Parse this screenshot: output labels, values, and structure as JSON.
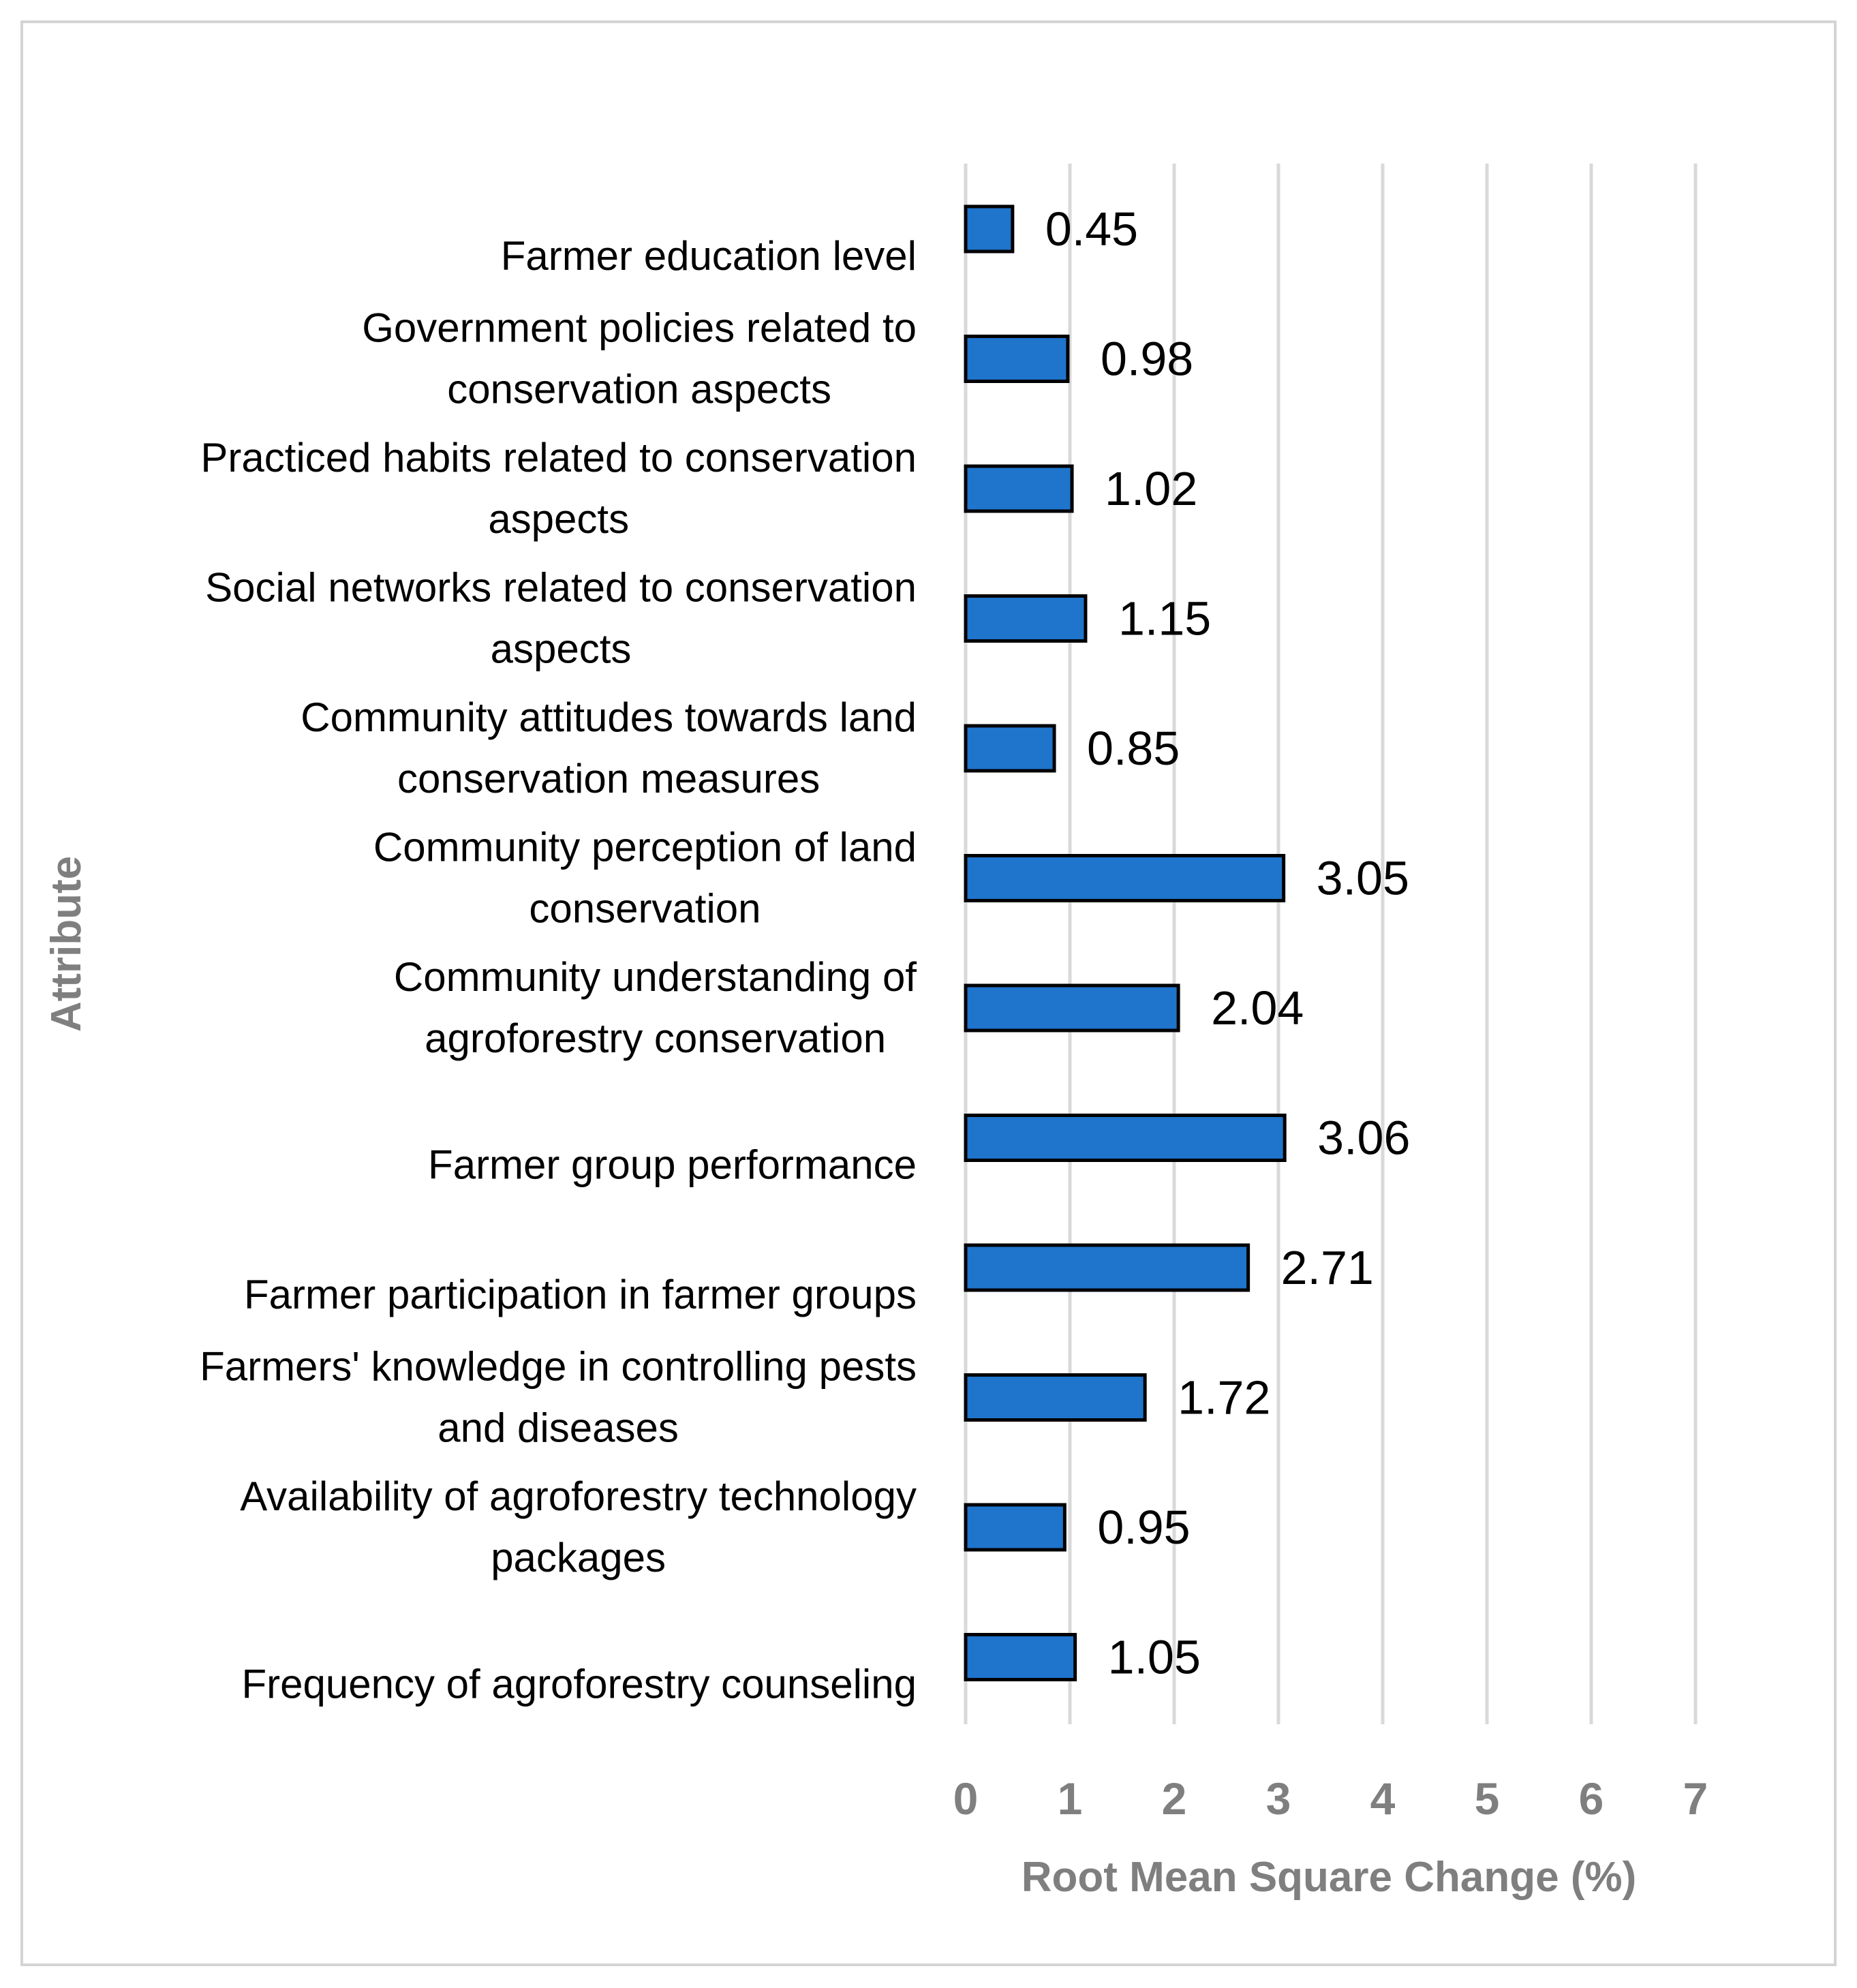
{
  "chart_data": {
    "type": "bar",
    "orientation": "horizontal",
    "title": "",
    "xlabel": "Root Mean Square Change (%)",
    "ylabel": "Attribute",
    "xlim": [
      0,
      7
    ],
    "xticks": [
      "0",
      "1",
      "2",
      "3",
      "4",
      "5",
      "6",
      "7"
    ],
    "grid": true,
    "bar_color": "#1F74CC",
    "bar_border_color": "#000000",
    "grid_color": "#D9D9D9",
    "axis_text_color": "#7F7F7F",
    "categories": [
      {
        "lines": [
          "Farmer education level"
        ],
        "value": 0.45,
        "label": "0.45"
      },
      {
        "lines": [
          "Government policies related to",
          "conservation aspects"
        ],
        "value": 0.98,
        "label": "0.98"
      },
      {
        "lines": [
          "Practiced habits related to conservation",
          "aspects"
        ],
        "value": 1.02,
        "label": "1.02"
      },
      {
        "lines": [
          "Social networks related to conservation",
          "aspects"
        ],
        "value": 1.15,
        "label": "1.15"
      },
      {
        "lines": [
          "Community attitudes towards land",
          "conservation measures"
        ],
        "value": 0.85,
        "label": "0.85"
      },
      {
        "lines": [
          "Community perception of land",
          "conservation"
        ],
        "value": 3.05,
        "label": "3.05"
      },
      {
        "lines": [
          "Community understanding of",
          "agroforestry conservation"
        ],
        "value": 2.04,
        "label": "2.04"
      },
      {
        "lines": [
          "Farmer group performance"
        ],
        "value": 3.06,
        "label": "3.06"
      },
      {
        "lines": [
          "Farmer participation in farmer groups"
        ],
        "value": 2.71,
        "label": "2.71"
      },
      {
        "lines": [
          "Farmers' knowledge in controlling pests",
          "and diseases"
        ],
        "value": 1.72,
        "label": "1.72"
      },
      {
        "lines": [
          "Availability of agroforestry technology",
          "packages"
        ],
        "value": 0.95,
        "label": "0.95"
      },
      {
        "lines": [
          "Frequency of agroforestry counseling"
        ],
        "value": 1.05,
        "label": "1.05"
      }
    ]
  }
}
